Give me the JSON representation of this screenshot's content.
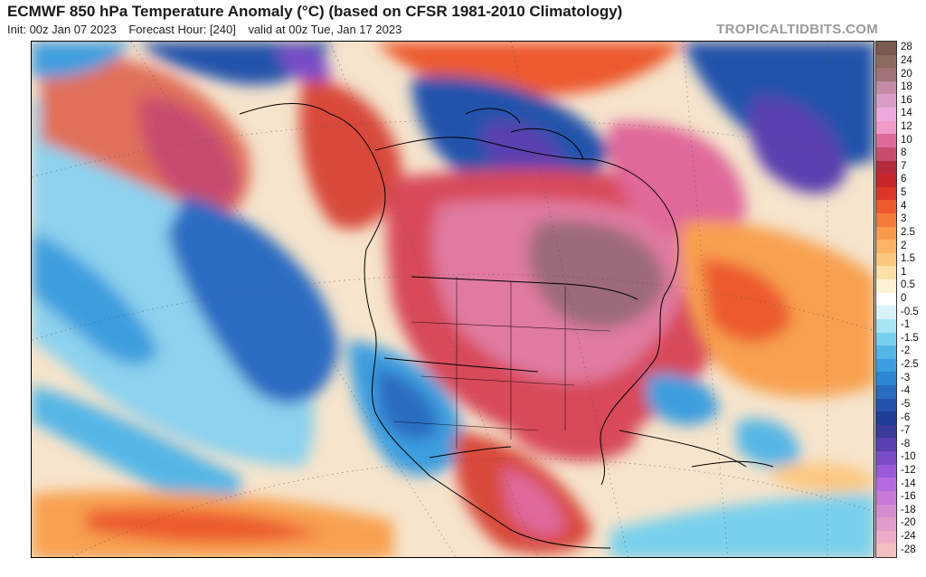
{
  "header": {
    "title": "ECMWF 850 hPa Temperature Anomaly (°C) (based on CFSR 1981-2010 Climatology)",
    "init": "Init: 00z Jan 07 2023",
    "forecast_hour": "Forecast Hour: [240]",
    "valid": "valid at 00z Tue, Jan 17 2023",
    "site": "TROPICALTIDBITS.COM"
  },
  "legend": {
    "levels": [
      {
        "label": "28",
        "color": "#7a5a4e"
      },
      {
        "label": "24",
        "color": "#8c6a60"
      },
      {
        "label": "20",
        "color": "#a0727a"
      },
      {
        "label": "18",
        "color": "#c48aa6"
      },
      {
        "label": "16",
        "color": "#d99dc8"
      },
      {
        "label": "14",
        "color": "#eeaadc"
      },
      {
        "label": "12",
        "color": "#f09ac8"
      },
      {
        "label": "10",
        "color": "#e0689a"
      },
      {
        "label": "8",
        "color": "#c84c6e"
      },
      {
        "label": "7",
        "color": "#b32a3a"
      },
      {
        "label": "6",
        "color": "#c8262a"
      },
      {
        "label": "5",
        "color": "#dc3628"
      },
      {
        "label": "4",
        "color": "#ec5a2e"
      },
      {
        "label": "3",
        "color": "#f47c3a"
      },
      {
        "label": "2.5",
        "color": "#f89a4a"
      },
      {
        "label": "2",
        "color": "#fab464"
      },
      {
        "label": "1.5",
        "color": "#fcc880"
      },
      {
        "label": "1",
        "color": "#fde0a8"
      },
      {
        "label": "0.5",
        "color": "#fef2d6"
      },
      {
        "label": "0",
        "color": "#ffffff"
      },
      {
        "label": "-0.5",
        "color": "#d8f2f8"
      },
      {
        "label": "-1",
        "color": "#a8e4f2"
      },
      {
        "label": "-1.5",
        "color": "#78d0ec"
      },
      {
        "label": "-2",
        "color": "#54b6e6"
      },
      {
        "label": "-2.5",
        "color": "#3c9ede"
      },
      {
        "label": "-3",
        "color": "#2c86d2"
      },
      {
        "label": "-4",
        "color": "#2a6cc2"
      },
      {
        "label": "-5",
        "color": "#2452ac"
      },
      {
        "label": "-6",
        "color": "#203e96"
      },
      {
        "label": "-7",
        "color": "#3a3a9a"
      },
      {
        "label": "-8",
        "color": "#5a40b0"
      },
      {
        "label": "-10",
        "color": "#7a4cc8"
      },
      {
        "label": "-12",
        "color": "#9a5ad8"
      },
      {
        "label": "-14",
        "color": "#b46ae0"
      },
      {
        "label": "-16",
        "color": "#c87ad8"
      },
      {
        "label": "-18",
        "color": "#d48cd0"
      },
      {
        "label": "-20",
        "color": "#e09cca"
      },
      {
        "label": "-24",
        "color": "#eaaec8"
      },
      {
        "label": "-28",
        "color": "#f2c0c0"
      }
    ]
  }
}
